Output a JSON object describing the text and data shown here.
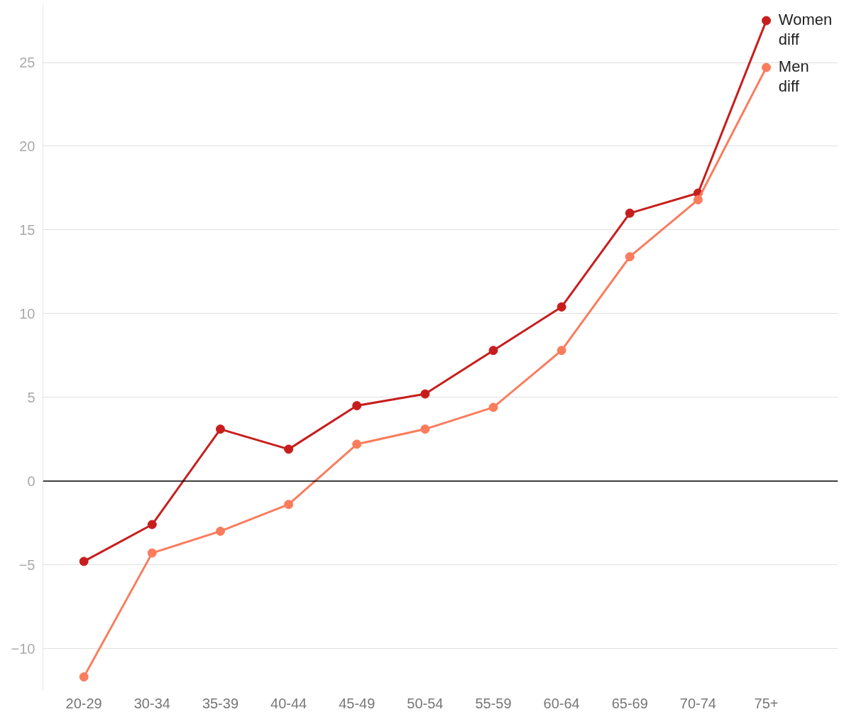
{
  "chart_data": {
    "type": "line",
    "categories": [
      "20-29",
      "30-34",
      "35-39",
      "40-44",
      "45-49",
      "50-54",
      "55-59",
      "60-64",
      "65-69",
      "70-74",
      "75+"
    ],
    "series": [
      {
        "name": "Women diff",
        "color": "#c71e1d",
        "values": [
          -4.8,
          -2.6,
          3.1,
          1.9,
          4.5,
          5.2,
          7.8,
          10.4,
          16.0,
          17.2,
          27.5
        ]
      },
      {
        "name": "Men diff",
        "color": "#fa7c5d",
        "values": [
          -11.7,
          -4.3,
          -3.0,
          -1.4,
          2.2,
          3.1,
          4.4,
          7.8,
          13.4,
          16.8,
          24.7
        ]
      }
    ],
    "ylim": [
      -12.5,
      28.5
    ],
    "yticks": [
      {
        "value": -10,
        "label": "−10"
      },
      {
        "value": -5,
        "label": "−5"
      },
      0,
      5,
      10,
      15,
      20,
      25
    ],
    "ref_lines": [
      {
        "axis": "y",
        "value": 0,
        "label": null,
        "color": "#000000"
      }
    ],
    "grid": "y",
    "marker": "circle",
    "line_style": "solid",
    "legend": "top right"
  }
}
